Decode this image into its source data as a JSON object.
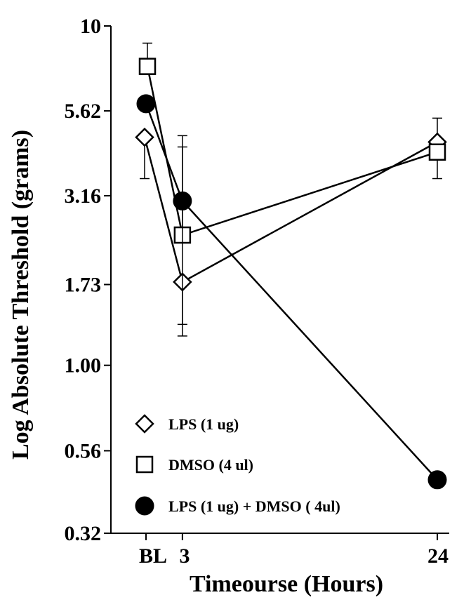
{
  "chart_data": {
    "type": "line",
    "title": "",
    "xlabel": "Timeourse (Hours)",
    "ylabel": "Log Absolute Threshold (grams)",
    "yscale": "log",
    "ylim": [
      0.32,
      10
    ],
    "yticks": [
      0.32,
      0.56,
      1.0,
      1.73,
      3.16,
      5.62,
      10
    ],
    "ytick_labels": [
      "0.32",
      "0.56",
      "1.00",
      "1.73",
      "3.16",
      "5.62",
      "10"
    ],
    "x_values": [
      0,
      3,
      24
    ],
    "xtick_labels": [
      "BL",
      "3",
      "24"
    ],
    "xlim": [
      -3,
      25.2
    ],
    "legend_position": "bottom-left",
    "series": [
      {
        "name": "LPS (1 ug)",
        "marker": "diamond",
        "values": [
          4.7,
          1.76,
          4.55
        ],
        "err_upper": [
          null,
          null,
          5.35
        ],
        "err_lower": [
          3.55,
          1.22,
          null
        ]
      },
      {
        "name": "DMSO (4 ul)",
        "marker": "square",
        "values": [
          7.6,
          2.42,
          4.25
        ],
        "err_upper": [
          8.9,
          4.4,
          null
        ],
        "err_lower": [
          null,
          null,
          3.55
        ]
      },
      {
        "name": "LPS (1 ug) + DMSO ( 4ul)",
        "marker": "filled-circle",
        "values": [
          5.9,
          3.05,
          0.46
        ],
        "err_upper": [
          null,
          4.75,
          null
        ],
        "err_lower": [
          null,
          1.32,
          null
        ]
      }
    ]
  }
}
